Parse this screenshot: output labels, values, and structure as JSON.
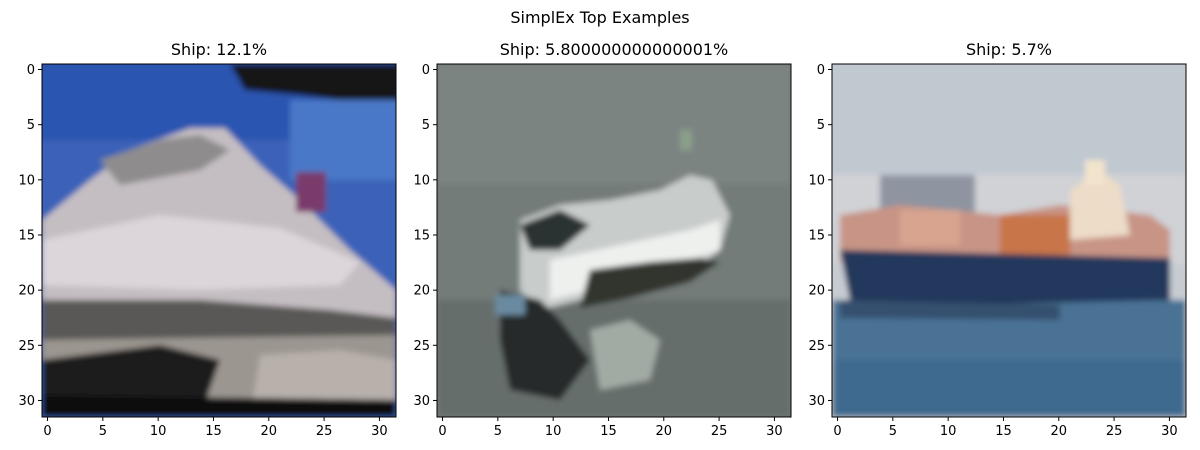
{
  "figure": {
    "title": "SimplEx Top Examples"
  },
  "chart_data": [
    {
      "type": "image",
      "title": "Ship: 12.1%",
      "label": "Ship",
      "probability_text": "12.1%",
      "image_size": [
        32,
        32
      ],
      "x_ticks": [
        0,
        5,
        10,
        15,
        20,
        25,
        30
      ],
      "y_ticks": [
        0,
        5,
        10,
        15,
        20,
        25,
        30
      ],
      "xlim": [
        -0.5,
        31.5
      ],
      "ylim": [
        31.5,
        -0.5
      ],
      "image_description": "white cruise ship on blue sky, dark dock at bottom",
      "colors": {
        "sky": "#3a62b8",
        "dark": "#101014",
        "hull": "#c8c2c6",
        "shadow": "#5c5a58",
        "accent": "#7a3a6a"
      }
    },
    {
      "type": "image",
      "title": "Ship: 5.800000000000001%",
      "label": "Ship",
      "probability_text": "5.800000000000001%",
      "image_size": [
        32,
        32
      ],
      "x_ticks": [
        0,
        5,
        10,
        15,
        20,
        25,
        30
      ],
      "y_ticks": [
        0,
        5,
        10,
        15,
        20,
        25,
        30
      ],
      "xlim": [
        -0.5,
        31.5
      ],
      "ylim": [
        31.5,
        -0.5
      ],
      "image_description": "small white boat on grey water",
      "colors": {
        "water": "#6f7775",
        "hull": "#e4e6e4",
        "dark": "#2c3032",
        "wake": "#9aa49e"
      }
    },
    {
      "type": "image",
      "title": "Ship: 5.7%",
      "label": "Ship",
      "probability_text": "5.7%",
      "image_size": [
        32,
        32
      ],
      "x_ticks": [
        0,
        5,
        10,
        15,
        20,
        25,
        30
      ],
      "y_ticks": [
        0,
        5,
        10,
        15,
        20,
        25,
        30
      ],
      "xlim": [
        -0.5,
        31.5
      ],
      "ylim": [
        31.5,
        -0.5
      ],
      "image_description": "container ship on blue sea under pale sky",
      "colors": {
        "sky": "#c6ccd2",
        "sea": "#4a7294",
        "hull": "#24385c",
        "cargo": "#c87a5a",
        "superstructure": "#eadcc8"
      }
    }
  ]
}
